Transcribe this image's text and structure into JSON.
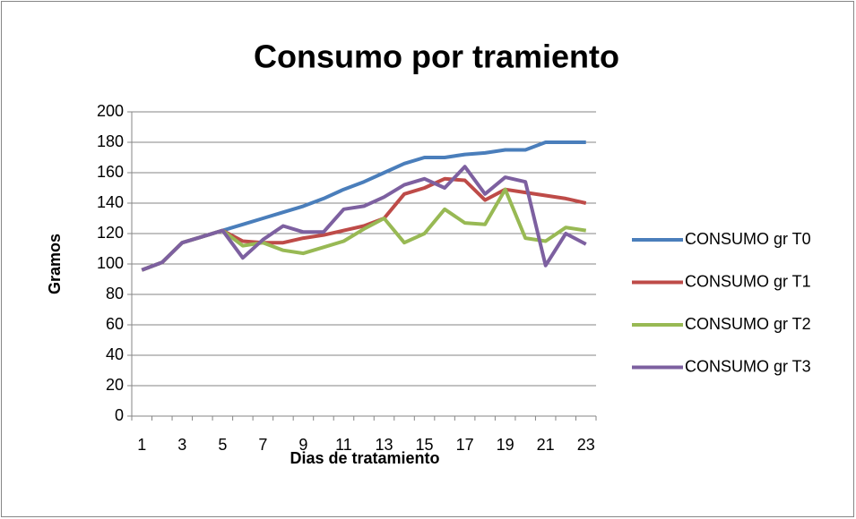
{
  "chart_data": {
    "type": "line",
    "title": "Consumo por tramiento",
    "x_label": "Dias de tratamiento",
    "y_label": "Gramos",
    "categories": [
      1,
      null,
      3,
      null,
      5,
      null,
      7,
      null,
      9,
      null,
      11,
      null,
      13,
      null,
      15,
      null,
      17,
      null,
      19,
      null,
      21,
      null,
      23
    ],
    "series": [
      {
        "name": "CONSUMO gr T0",
        "color": "#4a7ebb",
        "values": [
          96,
          101,
          114,
          118,
          122,
          126,
          130,
          134,
          138,
          143,
          149,
          154,
          160,
          166,
          170,
          170,
          172,
          173,
          175,
          175,
          180,
          180,
          180
        ]
      },
      {
        "name": "CONSUMO gr T1",
        "color": "#be4b48",
        "values": [
          96,
          101,
          114,
          118,
          122,
          115,
          114,
          114,
          117,
          119,
          122,
          125,
          130,
          146,
          150,
          156,
          155,
          142,
          149,
          147,
          145,
          143,
          140
        ]
      },
      {
        "name": "CONSUMO gr T2",
        "color": "#98b954",
        "values": [
          96,
          101,
          114,
          118,
          122,
          112,
          114,
          109,
          107,
          111,
          115,
          123,
          130,
          114,
          120,
          136,
          127,
          126,
          149,
          117,
          115,
          124,
          122
        ]
      },
      {
        "name": "CONSUMO gr T3",
        "color": "#7d60a0",
        "values": [
          96,
          101,
          114,
          118,
          122,
          104,
          116,
          125,
          121,
          121,
          136,
          138,
          144,
          152,
          156,
          150,
          164,
          146,
          157,
          154,
          99,
          120,
          113
        ]
      }
    ],
    "ylim": [
      0,
      200
    ],
    "yticks": [
      0,
      20,
      40,
      60,
      80,
      100,
      120,
      140,
      160,
      180,
      200
    ],
    "grid": true,
    "legend": "right"
  }
}
